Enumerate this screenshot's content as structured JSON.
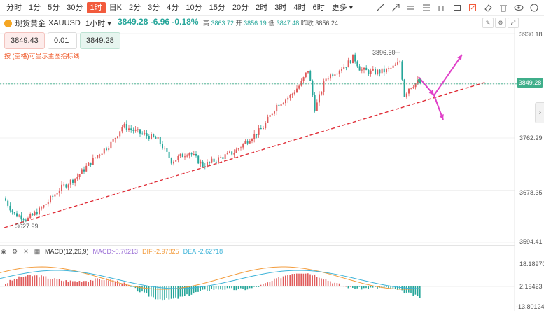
{
  "toolbar": {
    "periods": [
      "分时",
      "1分",
      "5分",
      "30分",
      "1时",
      "日K",
      "2分",
      "3分",
      "4分",
      "10分",
      "15分",
      "20分",
      "2时",
      "3时",
      "4时",
      "6时",
      "更多"
    ],
    "active_period": "1时",
    "tool_icons": [
      "trend-line-icon",
      "ray-icon",
      "horizontal-line-icon",
      "fib-icon",
      "text-icon",
      "rectangle-icon",
      "screenshot-icon",
      "eraser-icon",
      "delete-icon",
      "eye-icon",
      "visibility-icon"
    ]
  },
  "info": {
    "symbol_name": "现货黄金",
    "symbol_code": "XAUUSD",
    "interval": "1小时",
    "price": "3849.28",
    "change": "-6.96",
    "change_pct": "-0.18%",
    "high_label": "高",
    "high": "3863.72",
    "open_label": "开",
    "open": "3856.19",
    "low_label": "低",
    "low": "3847.48",
    "prev_label": "昨收",
    "prev": "3856.24"
  },
  "order": {
    "sell_price": "3849.43",
    "quantity": "0.01",
    "buy_price": "3849.28",
    "hint": "按 (空格)可显示主图指标线"
  },
  "axis": {
    "y_ticks": [
      "3930.18",
      "3849.28",
      "3762.29",
      "3678.35",
      "3594.41"
    ],
    "macd_ticks": [
      "18.18970",
      "2.19423",
      "-13.80124"
    ],
    "current_price": "3849.28"
  },
  "annotations": {
    "high_mark": "3896.60",
    "low_mark": "3627.99"
  },
  "macd": {
    "title": "MACD(12,26,9)",
    "macd_label": "MACD:",
    "macd_value": "-0.70213",
    "dif_label": "DIF:",
    "dif_value": "-2.97825",
    "dea_label": "DEA:",
    "dea_value": "-2.62718"
  },
  "colors": {
    "up": "#e05b5b",
    "down": "#26a69a",
    "trendline": "#e0303a",
    "arrow": "#e040c8",
    "dif": "#f39c3d",
    "dea": "#3db3d8",
    "macd_label": "#9b6fd6"
  }
}
